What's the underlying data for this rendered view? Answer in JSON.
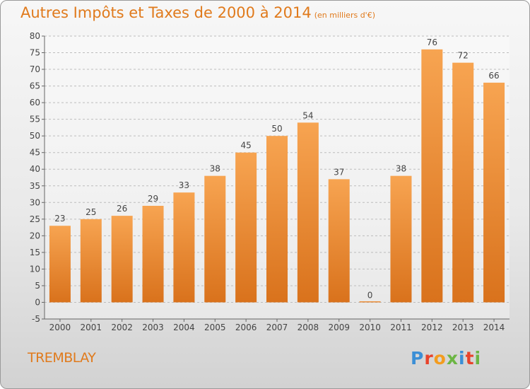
{
  "chart_data": {
    "type": "bar",
    "title": "Autres Impôts et Taxes de 2000 à 2014",
    "subtitle": "(en milliers d'€)",
    "categories": [
      "2000",
      "2001",
      "2002",
      "2003",
      "2004",
      "2005",
      "2006",
      "2007",
      "2008",
      "2009",
      "2010",
      "2011",
      "2012",
      "2013",
      "2014"
    ],
    "values": [
      23,
      25,
      26,
      29,
      33,
      38,
      45,
      50,
      54,
      37,
      0,
      38,
      76,
      72,
      66
    ],
    "ylim": [
      -5,
      80
    ],
    "yticks": [
      -5,
      0,
      5,
      10,
      15,
      20,
      25,
      30,
      35,
      40,
      45,
      50,
      55,
      60,
      65,
      70,
      75,
      80
    ],
    "grid": true,
    "bar_color": "#f0882e"
  },
  "footer": {
    "location": "TREMBLAY",
    "brand": "Proxiti",
    "brand_colors": [
      "#3c8fd6",
      "#e8432b",
      "#f39c1f",
      "#6cb644",
      "#3c8fd6",
      "#e8432b",
      "#6cb644"
    ]
  }
}
